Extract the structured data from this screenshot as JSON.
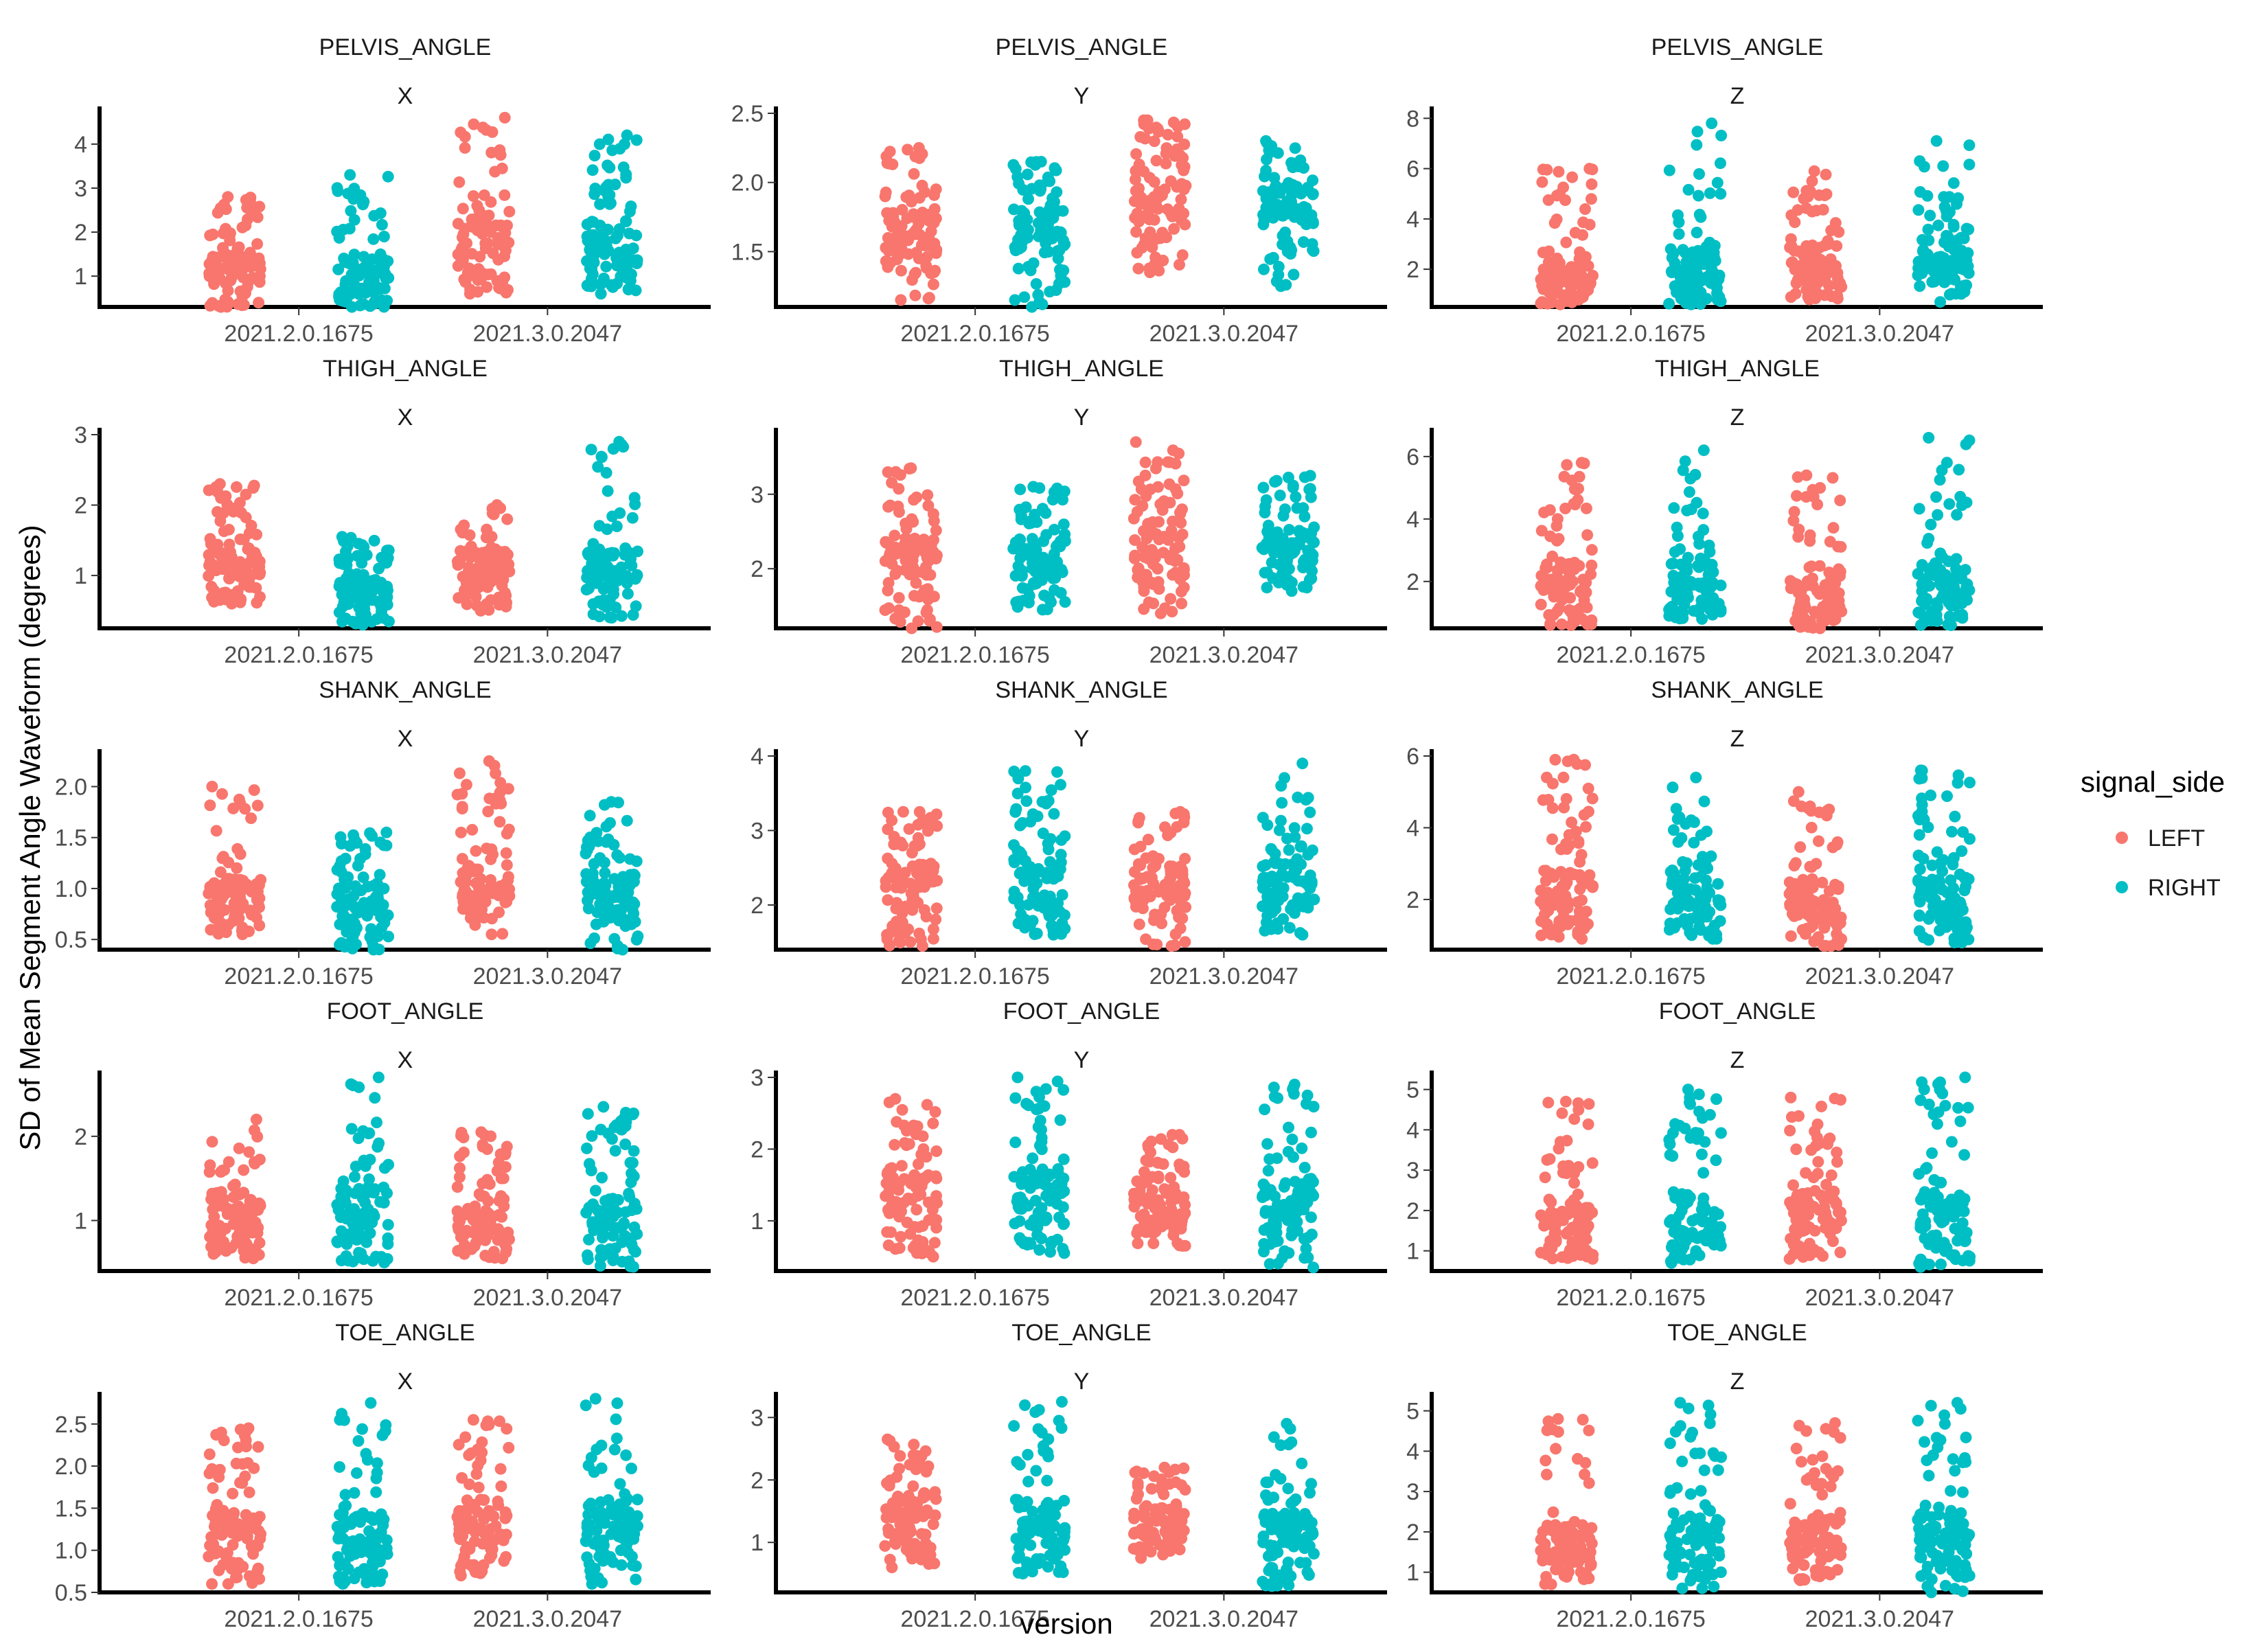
{
  "chart_data": {
    "type": "scatter",
    "style": "jittered strip plot, 5x3 facet grid",
    "xlabel": "version",
    "ylabel": "SD of Mean Segment Angle Waveform (degrees)",
    "categories": [
      "2021.2.0.1675",
      "2021.3.0.2047"
    ],
    "legend": {
      "title": "signal_side",
      "position": "right",
      "items": [
        {
          "label": "LEFT",
          "color": "#F8766D"
        },
        {
          "label": "RIGHT",
          "color": "#00BFC4"
        }
      ]
    },
    "grid": false,
    "points_per_group": 100,
    "note_values": "per group: [min, q1, median, q3, max] for LEFT and RIGHT at each version",
    "panels": [
      {
        "segment": "PELVIS_ANGLE",
        "axis": "X",
        "ylim": [
          0.3,
          4.7
        ],
        "yticks": [
          1,
          2,
          3,
          4
        ],
        "series": [
          {
            "name": "LEFT",
            "groups": [
              [
                0.3,
                0.9,
                1.2,
                1.5,
                2.8
              ],
              [
                0.6,
                1.4,
                1.8,
                2.3,
                4.6
              ]
            ]
          },
          {
            "name": "RIGHT",
            "groups": [
              [
                0.3,
                0.7,
                1.1,
                1.5,
                3.3
              ],
              [
                0.6,
                1.3,
                1.8,
                2.3,
                4.2
              ]
            ]
          }
        ]
      },
      {
        "segment": "PELVIS_ANGLE",
        "axis": "Y",
        "ylim": [
          1.1,
          2.5
        ],
        "yticks": [
          1.5,
          2.0,
          2.5
        ],
        "series": [
          {
            "name": "LEFT",
            "groups": [
              [
                1.15,
                1.45,
                1.6,
                1.8,
                2.25
              ],
              [
                1.35,
                1.75,
                1.9,
                2.05,
                2.45
              ]
            ]
          },
          {
            "name": "RIGHT",
            "groups": [
              [
                1.1,
                1.5,
                1.65,
                1.8,
                2.15
              ],
              [
                1.25,
                1.7,
                1.85,
                2.0,
                2.3
              ]
            ]
          }
        ]
      },
      {
        "segment": "PELVIS_ANGLE",
        "axis": "Z",
        "ylim": [
          0.5,
          8.2
        ],
        "yticks": [
          2,
          4,
          6,
          8
        ],
        "series": [
          {
            "name": "LEFT",
            "groups": [
              [
                0.6,
                1.3,
                1.8,
                2.5,
                6.0
              ],
              [
                0.8,
                1.6,
                2.2,
                3.0,
                5.9
              ]
            ]
          },
          {
            "name": "RIGHT",
            "groups": [
              [
                0.6,
                1.5,
                2.2,
                3.0,
                7.8
              ],
              [
                0.7,
                1.8,
                2.5,
                3.4,
                7.1
              ]
            ]
          }
        ]
      },
      {
        "segment": "THIGH_ANGLE",
        "axis": "X",
        "ylim": [
          0.25,
          3.0
        ],
        "yticks": [
          1,
          2,
          3
        ],
        "series": [
          {
            "name": "LEFT",
            "groups": [
              [
                0.6,
                1.0,
                1.2,
                1.45,
                2.3
              ],
              [
                0.5,
                0.9,
                1.1,
                1.35,
                2.0
              ]
            ]
          },
          {
            "name": "RIGHT",
            "groups": [
              [
                0.3,
                0.65,
                0.85,
                1.05,
                1.55
              ],
              [
                0.4,
                0.9,
                1.1,
                1.4,
                2.9
              ]
            ]
          }
        ]
      },
      {
        "segment": "THIGH_ANGLE",
        "axis": "Y",
        "ylim": [
          1.2,
          3.8
        ],
        "yticks": [
          2,
          3
        ],
        "series": [
          {
            "name": "LEFT",
            "groups": [
              [
                1.2,
                1.9,
                2.15,
                2.4,
                3.35
              ],
              [
                1.4,
                2.1,
                2.35,
                2.65,
                3.7
              ]
            ]
          },
          {
            "name": "RIGHT",
            "groups": [
              [
                1.45,
                1.9,
                2.15,
                2.4,
                3.1
              ],
              [
                1.7,
                2.15,
                2.35,
                2.6,
                3.25
              ]
            ]
          }
        ]
      },
      {
        "segment": "THIGH_ANGLE",
        "axis": "Z",
        "ylim": [
          0.5,
          6.7
        ],
        "yticks": [
          2,
          4,
          6
        ],
        "series": [
          {
            "name": "LEFT",
            "groups": [
              [
                0.6,
                1.4,
                1.9,
                2.6,
                5.8
              ],
              [
                0.5,
                1.3,
                1.8,
                2.5,
                5.4
              ]
            ]
          },
          {
            "name": "RIGHT",
            "groups": [
              [
                0.8,
                1.5,
                2.0,
                2.6,
                6.2
              ],
              [
                0.6,
                1.4,
                1.9,
                2.6,
                6.6
              ]
            ]
          }
        ]
      },
      {
        "segment": "SHANK_ANGLE",
        "axis": "X",
        "ylim": [
          0.4,
          2.3
        ],
        "yticks": [
          0.5,
          1.0,
          1.5,
          2.0
        ],
        "series": [
          {
            "name": "LEFT",
            "groups": [
              [
                0.55,
                0.8,
                0.95,
                1.1,
                2.0
              ],
              [
                0.55,
                0.85,
                1.0,
                1.2,
                2.25
              ]
            ]
          },
          {
            "name": "RIGHT",
            "groups": [
              [
                0.4,
                0.7,
                0.85,
                1.05,
                1.55
              ],
              [
                0.4,
                0.75,
                0.95,
                1.15,
                1.85
              ]
            ]
          }
        ]
      },
      {
        "segment": "SHANK_ANGLE",
        "axis": "Y",
        "ylim": [
          1.4,
          4.0
        ],
        "yticks": [
          2,
          3,
          4
        ],
        "series": [
          {
            "name": "LEFT",
            "groups": [
              [
                1.45,
                2.0,
                2.3,
                2.55,
                3.25
              ],
              [
                1.45,
                2.05,
                2.3,
                2.55,
                3.25
              ]
            ]
          },
          {
            "name": "RIGHT",
            "groups": [
              [
                1.6,
                2.1,
                2.35,
                2.6,
                3.8
              ],
              [
                1.6,
                2.05,
                2.3,
                2.6,
                3.9
              ]
            ]
          }
        ]
      },
      {
        "segment": "SHANK_ANGLE",
        "axis": "Z",
        "ylim": [
          0.6,
          6.0
        ],
        "yticks": [
          2,
          4,
          6
        ],
        "series": [
          {
            "name": "LEFT",
            "groups": [
              [
                0.9,
                1.6,
                2.2,
                2.9,
                5.9
              ],
              [
                0.7,
                1.4,
                1.9,
                2.6,
                5.0
              ]
            ]
          },
          {
            "name": "RIGHT",
            "groups": [
              [
                0.9,
                1.7,
                2.2,
                2.9,
                5.4
              ],
              [
                0.8,
                1.5,
                2.1,
                2.8,
                5.6
              ]
            ]
          }
        ]
      },
      {
        "segment": "FOOT_ANGLE",
        "axis": "X",
        "ylim": [
          0.4,
          2.7
        ],
        "yticks": [
          1,
          2
        ],
        "series": [
          {
            "name": "LEFT",
            "groups": [
              [
                0.55,
                0.9,
                1.1,
                1.35,
                2.2
              ],
              [
                0.55,
                0.85,
                1.05,
                1.3,
                2.05
              ]
            ]
          },
          {
            "name": "RIGHT",
            "groups": [
              [
                0.5,
                0.9,
                1.15,
                1.4,
                2.7
              ],
              [
                0.45,
                0.8,
                1.05,
                1.3,
                2.35
              ]
            ]
          }
        ]
      },
      {
        "segment": "FOOT_ANGLE",
        "axis": "Y",
        "ylim": [
          0.3,
          3.0
        ],
        "yticks": [
          1,
          2,
          3
        ],
        "series": [
          {
            "name": "LEFT",
            "groups": [
              [
                0.5,
                1.1,
                1.45,
                1.8,
                2.7
              ],
              [
                0.65,
                1.05,
                1.3,
                1.6,
                2.2
              ]
            ]
          },
          {
            "name": "RIGHT",
            "groups": [
              [
                0.55,
                1.05,
                1.4,
                1.75,
                3.0
              ],
              [
                0.35,
                0.95,
                1.25,
                1.55,
                2.9
              ]
            ]
          }
        ]
      },
      {
        "segment": "FOOT_ANGLE",
        "axis": "Z",
        "ylim": [
          0.5,
          5.3
        ],
        "yticks": [
          1,
          2,
          3,
          4,
          5
        ],
        "series": [
          {
            "name": "LEFT",
            "groups": [
              [
                0.8,
                1.3,
                1.7,
                2.2,
                4.7
              ],
              [
                0.8,
                1.4,
                1.9,
                2.5,
                4.8
              ]
            ]
          },
          {
            "name": "RIGHT",
            "groups": [
              [
                0.7,
                1.3,
                1.8,
                2.4,
                5.0
              ],
              [
                0.6,
                1.4,
                1.9,
                2.5,
                5.3
              ]
            ]
          }
        ]
      },
      {
        "segment": "TOE_ANGLE",
        "axis": "X",
        "ylim": [
          0.5,
          2.8
        ],
        "yticks": [
          0.5,
          1.0,
          1.5,
          2.0,
          2.5
        ],
        "series": [
          {
            "name": "LEFT",
            "groups": [
              [
                0.6,
                1.05,
                1.25,
                1.5,
                2.45
              ],
              [
                0.7,
                1.1,
                1.35,
                1.6,
                2.55
              ]
            ]
          },
          {
            "name": "RIGHT",
            "groups": [
              [
                0.6,
                0.95,
                1.2,
                1.45,
                2.75
              ],
              [
                0.6,
                1.1,
                1.35,
                1.6,
                2.8
              ]
            ]
          }
        ]
      },
      {
        "segment": "TOE_ANGLE",
        "axis": "Y",
        "ylim": [
          0.2,
          3.3
        ],
        "yticks": [
          1,
          2,
          3
        ],
        "series": [
          {
            "name": "LEFT",
            "groups": [
              [
                0.6,
                1.1,
                1.45,
                1.8,
                2.65
              ],
              [
                0.75,
                1.1,
                1.3,
                1.55,
                2.2
              ]
            ]
          },
          {
            "name": "RIGHT",
            "groups": [
              [
                0.5,
                1.0,
                1.35,
                1.7,
                3.25
              ],
              [
                0.3,
                0.95,
                1.25,
                1.5,
                2.9
              ]
            ]
          }
        ]
      },
      {
        "segment": "TOE_ANGLE",
        "axis": "Z",
        "ylim": [
          0.5,
          5.3
        ],
        "yticks": [
          1,
          2,
          3,
          4,
          5
        ],
        "series": [
          {
            "name": "LEFT",
            "groups": [
              [
                0.7,
                1.3,
                1.7,
                2.2,
                4.8
              ],
              [
                0.8,
                1.4,
                1.9,
                2.4,
                4.7
              ]
            ]
          },
          {
            "name": "RIGHT",
            "groups": [
              [
                0.6,
                1.3,
                1.8,
                2.4,
                5.2
              ],
              [
                0.5,
                1.3,
                1.8,
                2.5,
                5.2
              ]
            ]
          }
        ]
      }
    ]
  }
}
